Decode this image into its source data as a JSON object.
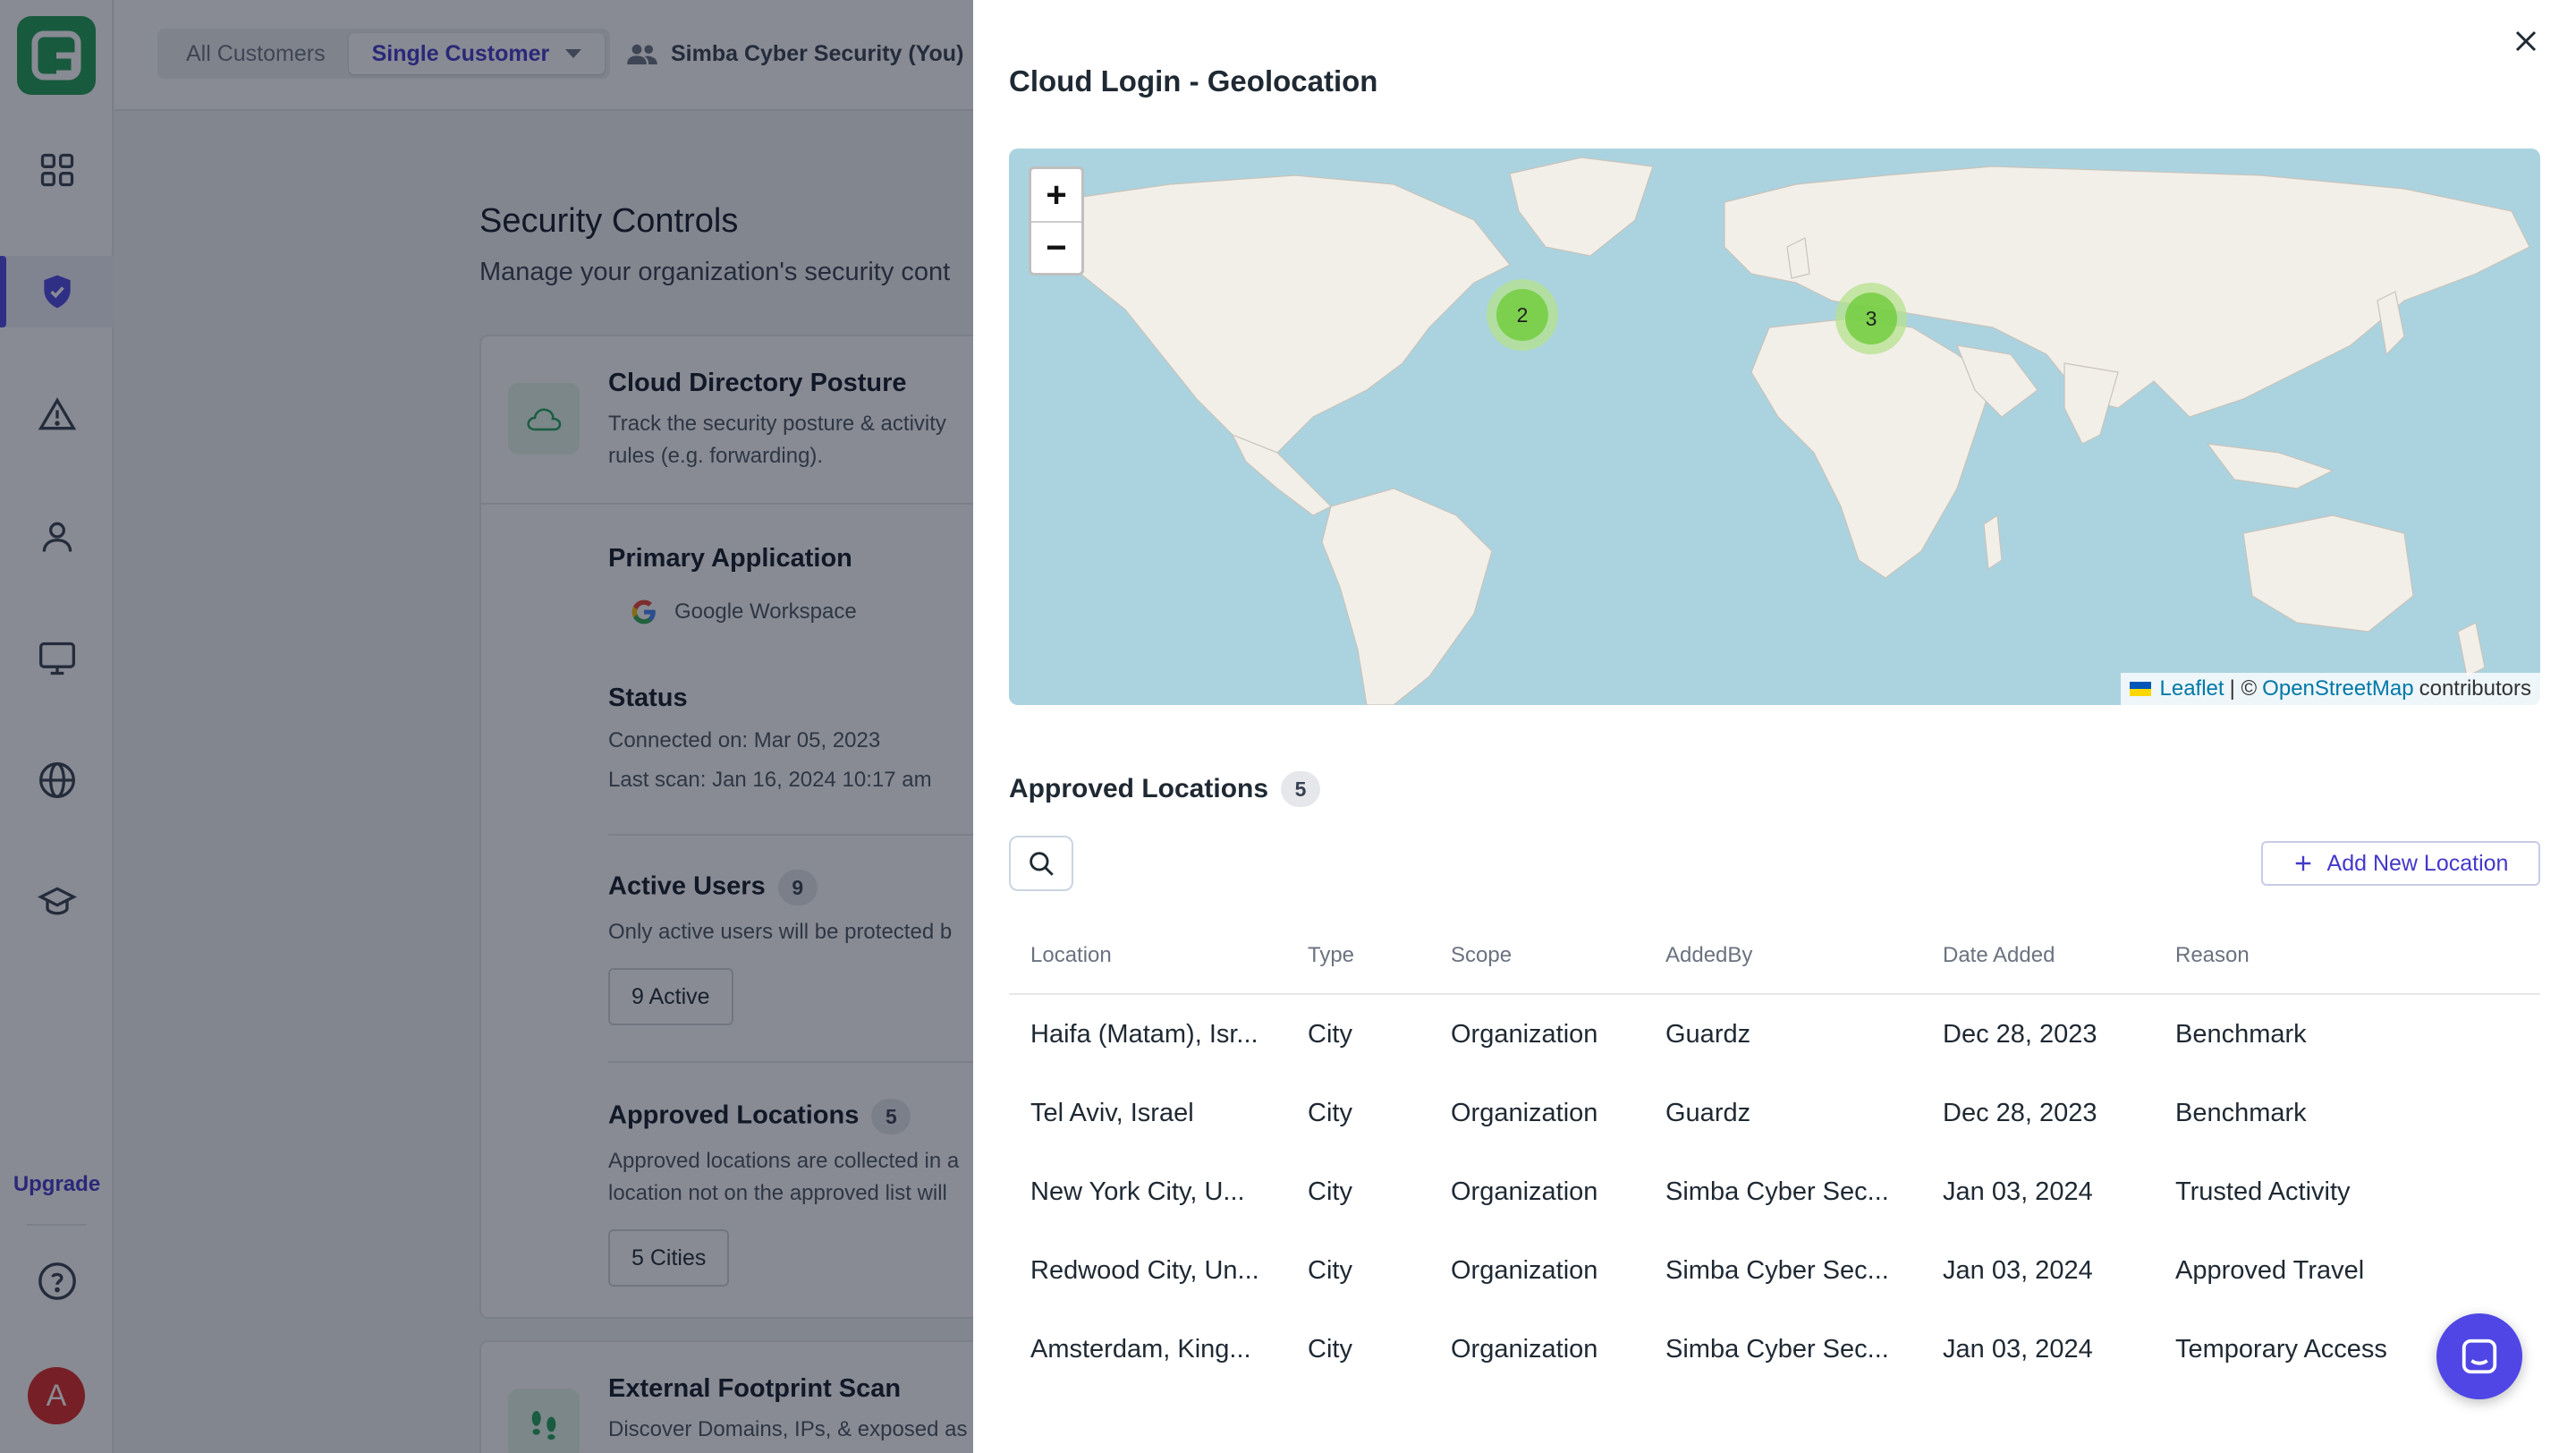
{
  "topbar": {
    "all_customers": "All Customers",
    "single_customer": "Single Customer",
    "customer_name": "Simba Cyber Security (You)"
  },
  "sidebar": {
    "upgrade": "Upgrade",
    "avatar_initial": "A",
    "icons": [
      "dashboard-icon",
      "shield-check-icon",
      "alert-triangle-icon",
      "user-icon",
      "monitor-icon",
      "globe-icon",
      "graduation-cap-icon",
      "help-circle-icon"
    ]
  },
  "main": {
    "title": "Security Controls",
    "subtitle": "Manage your organization's security cont",
    "card": {
      "title": "Cloud Directory Posture",
      "desc_line1": "Track the security posture & activity",
      "desc_line2": "rules (e.g. forwarding).",
      "primary_app_label": "Primary Application",
      "primary_app_value": "Google Workspace",
      "status_label": "Status",
      "connected_on": "Connected on: Mar 05, 2023",
      "last_scan": "Last scan: Jan 16, 2024 10:17 am",
      "active_users_label": "Active Users",
      "active_users_count": "9",
      "active_users_desc": "Only active users will be protected b",
      "active_chip": "9 Active",
      "approved_label": "Approved Locations",
      "approved_count": "5",
      "approved_desc1": "Approved locations are collected in a",
      "approved_desc2": "location not on the approved list will",
      "cities_chip": "5 Cities"
    },
    "card2": {
      "title": "External Footprint Scan",
      "desc": "Discover Domains, IPs, & exposed as"
    }
  },
  "drawer": {
    "title": "Cloud Login - Geolocation",
    "map": {
      "zoom_in": "+",
      "zoom_out": "−",
      "clusters": [
        {
          "count": "2",
          "region": "North America"
        },
        {
          "count": "3",
          "region": "Europe / Middle East"
        }
      ],
      "attribution_leaflet": "Leaflet",
      "attribution_sep": "| ©",
      "attribution_osm": "OpenStreetMap",
      "attribution_tail": "contributors"
    },
    "approved_title": "Approved Locations",
    "approved_count": "5",
    "add_button": "Add New Location",
    "table": {
      "headers": [
        "Location",
        "Type",
        "Scope",
        "AddedBy",
        "Date Added",
        "Reason"
      ],
      "rows": [
        [
          "Haifa (Matam), Isr...",
          "City",
          "Organization",
          "Guardz",
          "Dec 28, 2023",
          "Benchmark"
        ],
        [
          "Tel Aviv, Israel",
          "City",
          "Organization",
          "Guardz",
          "Dec 28, 2023",
          "Benchmark"
        ],
        [
          "New York City, U...",
          "City",
          "Organization",
          "Simba Cyber Sec...",
          "Jan 03, 2024",
          "Trusted Activity"
        ],
        [
          "Redwood City, Un...",
          "City",
          "Organization",
          "Simba Cyber Sec...",
          "Jan 03, 2024",
          "Approved Travel"
        ],
        [
          "Amsterdam, King...",
          "City",
          "Organization",
          "Simba Cyber Sec...",
          "Jan 03, 2024",
          "Temporary Access"
        ]
      ]
    }
  },
  "colors": {
    "accent": "#4f46e5",
    "brand_green": "#1e9d55",
    "map_water": "#aad3df",
    "map_land": "#f2efe9"
  }
}
